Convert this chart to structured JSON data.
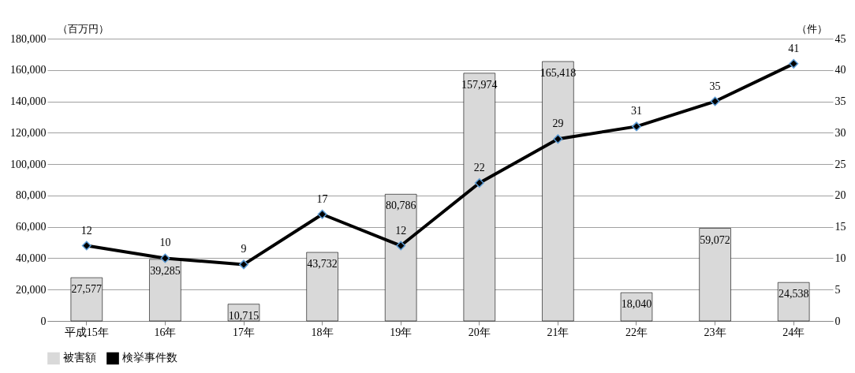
{
  "chart_data": {
    "type": "bar",
    "categories": [
      "平成15年",
      "16年",
      "17年",
      "18年",
      "19年",
      "20年",
      "21年",
      "22年",
      "23年",
      "24年"
    ],
    "ylabel": "（百万円）",
    "y2label": "（件）",
    "ylim": [
      0,
      180000
    ],
    "yticks": [
      0,
      {
        "value": 20000,
        "label": "20,000"
      },
      {
        "value": 40000,
        "label": "40,000"
      },
      {
        "value": 60000,
        "label": "60,000"
      },
      {
        "value": 80000,
        "label": "80,000"
      },
      {
        "value": 100000,
        "label": "100,000"
      },
      {
        "value": 120000,
        "label": "120,000"
      },
      {
        "value": 140000,
        "label": "140,000"
      },
      {
        "value": 160000,
        "label": "160,000"
      },
      {
        "value": 180000,
        "label": "180,000"
      }
    ],
    "y2lim": [
      0,
      45
    ],
    "y2ticks": [
      0,
      5,
      10,
      15,
      20,
      25,
      30,
      35,
      40,
      45
    ],
    "series": [
      {
        "name": "被害額",
        "color": "#d9d9d9",
        "values": [
          27577,
          39285,
          10715,
          43732,
          80786,
          157974,
          165418,
          18040,
          59072,
          24538
        ],
        "value_labels": [
          "27,577",
          "39,285",
          "10,715",
          "43,732",
          "80,786",
          "157,974",
          "165,418",
          "18,040",
          "59,072",
          "24,538"
        ]
      },
      {
        "name": "検挙事件数",
        "type": "line",
        "axis": "y2",
        "color": "#000000",
        "marker": "diamond",
        "values": [
          12,
          10,
          9,
          17,
          12,
          22,
          29,
          31,
          35,
          41
        ],
        "value_labels": [
          "12",
          "10",
          "9",
          "17",
          "12",
          "22",
          "29",
          "31",
          "35",
          "41"
        ]
      }
    ],
    "grid": "y",
    "legend": "bottom"
  }
}
